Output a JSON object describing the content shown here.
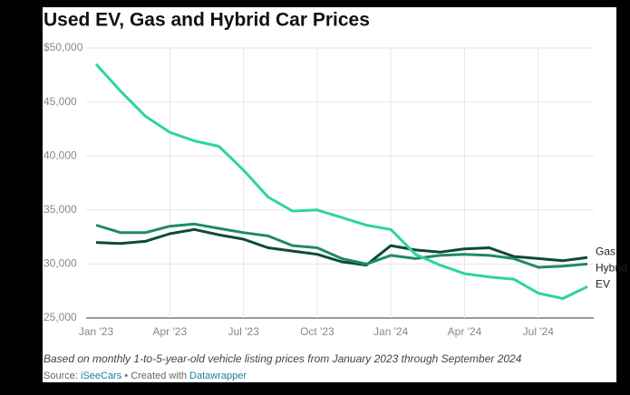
{
  "chart_data": {
    "type": "line",
    "title": "Used EV, Gas and Hybrid Car Prices",
    "categories": [
      "Jan '23",
      null,
      null,
      "Apr '23",
      null,
      null,
      "Jul '23",
      null,
      null,
      "Oct '23",
      null,
      null,
      "Jan '24",
      null,
      null,
      "Apr '24",
      null,
      null,
      "Jul '24",
      null,
      null
    ],
    "series": [
      {
        "name": "Gas",
        "color": "#0b4a3a",
        "values": [
          32000,
          31900,
          32100,
          32800,
          33200,
          32700,
          32300,
          31500,
          31200,
          30900,
          30200,
          29900,
          31700,
          31300,
          31100,
          31400,
          31500,
          30700,
          30500,
          30300,
          30600
        ]
      },
      {
        "name": "Hybrid",
        "color": "#1f8a66",
        "values": [
          33600,
          32900,
          32900,
          33500,
          33700,
          33300,
          32900,
          32600,
          31700,
          31500,
          30500,
          30000,
          30800,
          30500,
          30800,
          30900,
          30800,
          30500,
          29700,
          29800,
          30000
        ]
      },
      {
        "name": "EV",
        "color": "#2ed3a4",
        "values": [
          48500,
          46000,
          43700,
          42200,
          41400,
          40900,
          38700,
          36200,
          34900,
          35000,
          34300,
          33600,
          33200,
          30900,
          29900,
          29100,
          28800,
          28600,
          27300,
          26800,
          27900
        ]
      }
    ],
    "ylim": [
      25000,
      50000
    ],
    "yticks": [
      {
        "value": 25000,
        "label": "25,000"
      },
      {
        "value": 30000,
        "label": "30,000"
      },
      {
        "value": 35000,
        "label": "35,000"
      },
      {
        "value": 40000,
        "label": "40,000"
      },
      {
        "value": 45000,
        "label": "45,000"
      },
      {
        "value": 50000,
        "label": "$50,000"
      }
    ],
    "grid": true,
    "note": "Based on monthly 1-to-5-year-old vehicle listing prices from January 2023 through September 2024",
    "source": {
      "label": "Source:",
      "name": "iSeeCars",
      "credit_text": "• Created with",
      "credit": "Datawrapper"
    }
  }
}
